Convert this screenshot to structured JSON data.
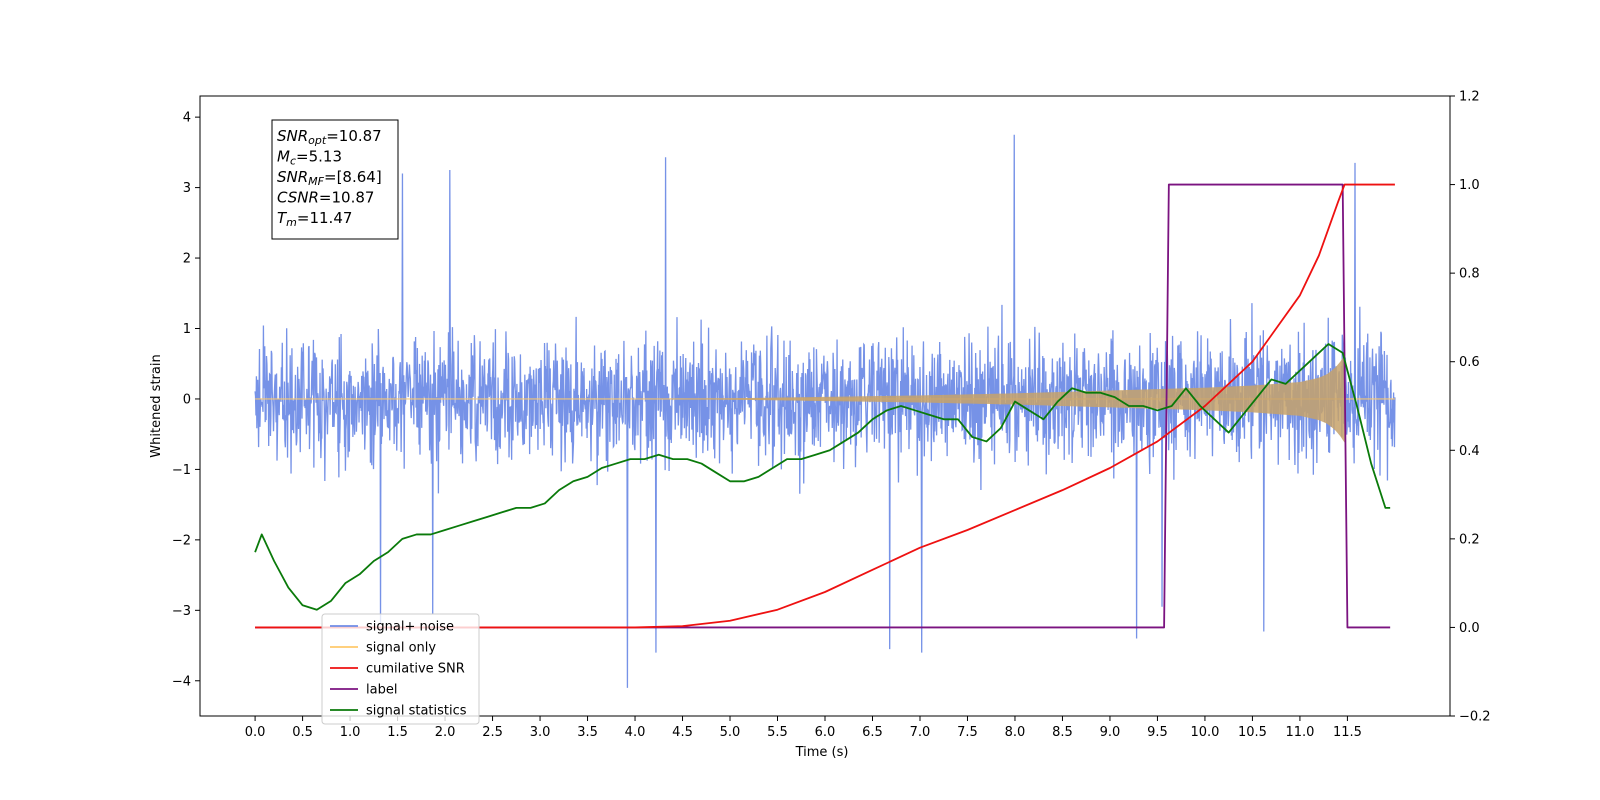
{
  "chart_data": {
    "type": "line",
    "xlabel": "Time (s)",
    "ylabel": "Whitened strain",
    "xlim": [
      -0.58,
      12.58
    ],
    "ylim": [
      -4.5,
      4.3
    ],
    "y2lim": [
      -0.2,
      1.2
    ],
    "x_ticks": [
      0.0,
      0.5,
      1.0,
      1.5,
      2.0,
      2.5,
      3.0,
      3.5,
      4.0,
      4.5,
      5.0,
      5.5,
      6.0,
      6.5,
      7.0,
      7.5,
      8.0,
      8.5,
      9.0,
      9.5,
      10.0,
      10.5,
      11.0,
      11.5
    ],
    "x_tick_labels": [
      "0.0",
      "0.5",
      "1.0",
      "1.5",
      "2.0",
      "2.5",
      "3.0",
      "3.5",
      "4.0",
      "4.5",
      "5.0",
      "5.5",
      "6.0",
      "6.5",
      "7.0",
      "7.5",
      "8.0",
      "8.5",
      "9.0",
      "9.5",
      "10.0",
      "10.5",
      "11.0",
      "11.5"
    ],
    "y_ticks": [
      -4,
      -3,
      -2,
      -1,
      0,
      1,
      2,
      3,
      4
    ],
    "y_tick_labels": [
      "−4",
      "−3",
      "−2",
      "−1",
      "0",
      "1",
      "2",
      "3",
      "4"
    ],
    "y2_ticks": [
      -0.2,
      0.0,
      0.2,
      0.4,
      0.6,
      0.8,
      1.0,
      1.2
    ],
    "y2_tick_labels": [
      "−0.2",
      "0.0",
      "0.2",
      "0.4",
      "0.6",
      "0.8",
      "1.0",
      "1.2"
    ],
    "grid": false,
    "legend_position": "lower-left",
    "legend": [
      {
        "label": "signal+ noise",
        "color": "#6f8ce6"
      },
      {
        "label": "signal only",
        "color": "#ffc96b"
      },
      {
        "label": "cumilative SNR",
        "color": "#ee1111"
      },
      {
        "label": "label",
        "color": "#7b1380"
      },
      {
        "label": "signal statistics",
        "color": "#0a7a0a"
      }
    ],
    "annotation": [
      {
        "sym": "SNR",
        "sub": "opt",
        "val": "=10.87"
      },
      {
        "sym": "M",
        "sub": "c",
        "val": "=5.13"
      },
      {
        "sym": "SNR",
        "sub": "MF",
        "val": "=[8.64]"
      },
      {
        "sym": "CSNR",
        "sub": "",
        "val": "=10.87"
      },
      {
        "sym": "T",
        "sub": "m",
        "val": "=11.47"
      }
    ],
    "series": [
      {
        "name": "signal+ noise",
        "axis": "left",
        "color": "#6f8ce6",
        "x_range": [
          0.0,
          12.0
        ],
        "envelope": {
          "upper": 2.4,
          "lower": -2.3
        },
        "peaks": [
          {
            "x": 7.99,
            "y": 3.75
          },
          {
            "x": 4.32,
            "y": 3.43
          },
          {
            "x": 11.58,
            "y": 3.35
          },
          {
            "x": 2.05,
            "y": 3.25
          },
          {
            "x": 1.55,
            "y": 3.2
          },
          {
            "x": 3.92,
            "y": -4.1
          },
          {
            "x": 4.22,
            "y": -3.6
          },
          {
            "x": 7.02,
            "y": -3.6
          },
          {
            "x": 6.68,
            "y": -3.55
          },
          {
            "x": 9.28,
            "y": -3.4
          },
          {
            "x": 1.32,
            "y": -3.2
          },
          {
            "x": 1.87,
            "y": -3.05
          },
          {
            "x": 10.62,
            "y": -3.3
          },
          {
            "x": 9.55,
            "y": -2.95
          }
        ]
      },
      {
        "name": "signal only",
        "axis": "left",
        "color": "#ffc96b",
        "envelope_t": [
          0.0,
          4.0,
          5.0,
          6.0,
          7.0,
          8.0,
          9.0,
          10.0,
          10.5,
          11.0,
          11.2,
          11.3,
          11.4,
          11.47
        ],
        "envelope_a": [
          0.0,
          0.0,
          0.01,
          0.03,
          0.05,
          0.08,
          0.12,
          0.16,
          0.19,
          0.24,
          0.3,
          0.36,
          0.48,
          0.62
        ]
      },
      {
        "name": "cumilative SNR",
        "axis": "right",
        "color": "#ee1111",
        "x": [
          0.0,
          4.0,
          4.5,
          5.0,
          5.5,
          6.0,
          6.5,
          7.0,
          7.5,
          8.0,
          8.5,
          9.0,
          9.5,
          10.0,
          10.5,
          11.0,
          11.2,
          11.4,
          11.47,
          12.0
        ],
        "values": [
          0.0,
          0.0,
          0.003,
          0.015,
          0.04,
          0.08,
          0.13,
          0.18,
          0.22,
          0.265,
          0.31,
          0.36,
          0.42,
          0.5,
          0.6,
          0.75,
          0.84,
          0.96,
          1.0,
          1.0
        ]
      },
      {
        "name": "label",
        "axis": "right",
        "color": "#7b1380",
        "x": [
          0.0,
          9.57,
          9.62,
          11.45,
          11.5,
          11.95
        ],
        "values": [
          0.0,
          0.0,
          1.0,
          1.0,
          0.0,
          0.0
        ]
      },
      {
        "name": "signal statistics",
        "axis": "right",
        "color": "#0a7a0a",
        "x": [
          0.0,
          0.07,
          0.2,
          0.35,
          0.5,
          0.65,
          0.8,
          0.95,
          1.1,
          1.25,
          1.4,
          1.55,
          1.7,
          1.85,
          2.0,
          2.15,
          2.3,
          2.45,
          2.6,
          2.75,
          2.9,
          3.05,
          3.2,
          3.35,
          3.5,
          3.65,
          3.8,
          3.95,
          4.1,
          4.25,
          4.4,
          4.55,
          4.7,
          4.85,
          5.0,
          5.15,
          5.3,
          5.45,
          5.6,
          5.75,
          5.9,
          6.05,
          6.2,
          6.35,
          6.5,
          6.65,
          6.8,
          6.95,
          7.1,
          7.25,
          7.4,
          7.55,
          7.7,
          7.85,
          8.0,
          8.15,
          8.3,
          8.45,
          8.6,
          8.75,
          8.9,
          9.05,
          9.2,
          9.35,
          9.5,
          9.65,
          9.8,
          9.95,
          10.1,
          10.25,
          10.4,
          10.55,
          10.7,
          10.85,
          11.0,
          11.15,
          11.3,
          11.45,
          11.6,
          11.75,
          11.9,
          11.95
        ],
        "values": [
          0.17,
          0.21,
          0.15,
          0.09,
          0.05,
          0.04,
          0.06,
          0.1,
          0.12,
          0.15,
          0.17,
          0.2,
          0.21,
          0.21,
          0.22,
          0.23,
          0.24,
          0.25,
          0.26,
          0.27,
          0.27,
          0.28,
          0.31,
          0.33,
          0.34,
          0.36,
          0.37,
          0.38,
          0.38,
          0.39,
          0.38,
          0.38,
          0.37,
          0.35,
          0.33,
          0.33,
          0.34,
          0.36,
          0.38,
          0.38,
          0.39,
          0.4,
          0.42,
          0.44,
          0.47,
          0.49,
          0.5,
          0.49,
          0.48,
          0.47,
          0.47,
          0.43,
          0.42,
          0.45,
          0.51,
          0.49,
          0.47,
          0.51,
          0.54,
          0.53,
          0.53,
          0.52,
          0.5,
          0.5,
          0.49,
          0.5,
          0.54,
          0.5,
          0.47,
          0.44,
          0.48,
          0.52,
          0.56,
          0.55,
          0.58,
          0.61,
          0.64,
          0.62,
          0.5,
          0.37,
          0.27,
          0.27
        ]
      }
    ]
  }
}
